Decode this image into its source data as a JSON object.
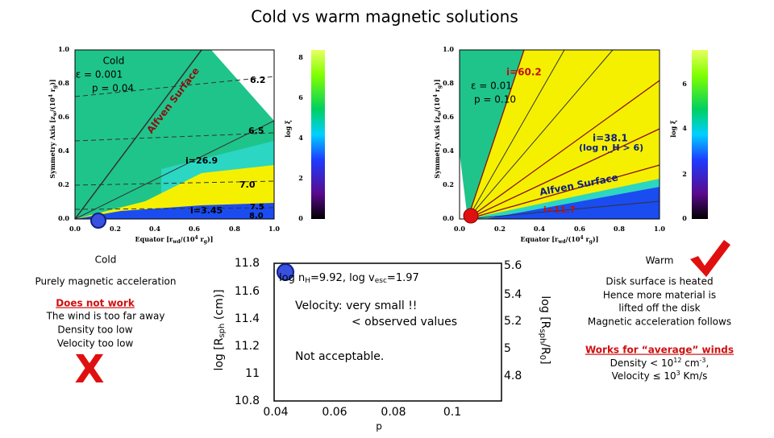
{
  "title": "Cold vs warm magnetic solutions",
  "left_plot": {
    "params": [
      "Cold",
      "ε = 0.001",
      "p = 0.04"
    ],
    "y_label": [
      "Symmetry Axis [z",
      "w",
      "/(10",
      "4",
      " r",
      "g",
      ")]"
    ],
    "x_label": [
      "Equator [r",
      "wd",
      "/(10",
      "4",
      " r",
      "g",
      ")]"
    ],
    "x_ticks": [
      "0.0",
      "0.2",
      "0.4",
      "0.6",
      "0.8",
      "1.0"
    ],
    "y_ticks": [
      "1.0",
      "0.8",
      "0.6",
      "0.4",
      "0.2",
      "0.0"
    ],
    "colorbar_label": "log ξ",
    "colorbar_ticks": [
      "8",
      "6",
      "4",
      "2",
      "0"
    ],
    "annotations": [
      "Alfven Surface",
      "6.2",
      "6.5",
      "i=26.9",
      "7.0",
      "7.5",
      "i=3.45",
      "8.0"
    ]
  },
  "right_plot": {
    "params": [
      "ε = 0.01",
      "p = 0.10"
    ],
    "y_label": [
      "Symmetry Axis [z",
      "w",
      "/(10",
      "4",
      " r",
      "g",
      ")]"
    ],
    "x_label": [
      "Equator [r",
      "wd",
      "/(10",
      "4",
      " r",
      "g",
      ")]"
    ],
    "x_ticks": [
      "0.0",
      "0.2",
      "0.4",
      "0.6",
      "0.8",
      "1.0"
    ],
    "y_ticks": [
      "1.0",
      "0.8",
      "0.6",
      "0.4",
      "0.2",
      "0.0"
    ],
    "colorbar_label": "log ξ",
    "colorbar_ticks": [
      "6",
      "4",
      "2",
      "0"
    ],
    "annotations": [
      "i=60.2",
      "i=38.1",
      "(log n_H > 6)",
      "Alfven Surface",
      "i=11.7"
    ]
  },
  "cold_notes": {
    "heading": "Cold",
    "subtitle": "Purely magnetic acceleration",
    "verdict": "Does not work",
    "lines": [
      "The wind is too far away",
      "Density too low",
      "Velocity too low"
    ],
    "mark": "X"
  },
  "middle_plot": {
    "y_ticks": [
      "11.8",
      "11.6",
      "11.4",
      "11.2",
      "11",
      "10.8"
    ],
    "y2_ticks": [
      "5.6",
      "5.4",
      "5.2",
      "5",
      "4.8"
    ],
    "x_ticks": [
      "0.04",
      "0.06",
      "0.08",
      "0.1"
    ],
    "x_label": "p",
    "y_label": [
      "log [R",
      "sph",
      " (cm)]"
    ],
    "y2_label": [
      "log [R",
      "sph",
      "/R",
      "0",
      "]"
    ],
    "annotation": [
      "log n",
      "H",
      "=9.92, log v",
      "esc",
      "=1.97"
    ],
    "notes": [
      "Velocity: very small !!",
      "< observed values",
      "Not acceptable."
    ]
  },
  "warm_notes": {
    "heading": "Warm",
    "lines": [
      "Disk surface is heated",
      "Hence more material is",
      "lifted off the disk",
      "Magnetic acceleration follows"
    ],
    "verdict": "Works for “average” winds",
    "density": [
      "Density < 10",
      "12",
      " cm",
      "-3",
      ","
    ],
    "velocity": [
      "Velocity ≤ 10",
      "3",
      " Km/s"
    ]
  }
}
